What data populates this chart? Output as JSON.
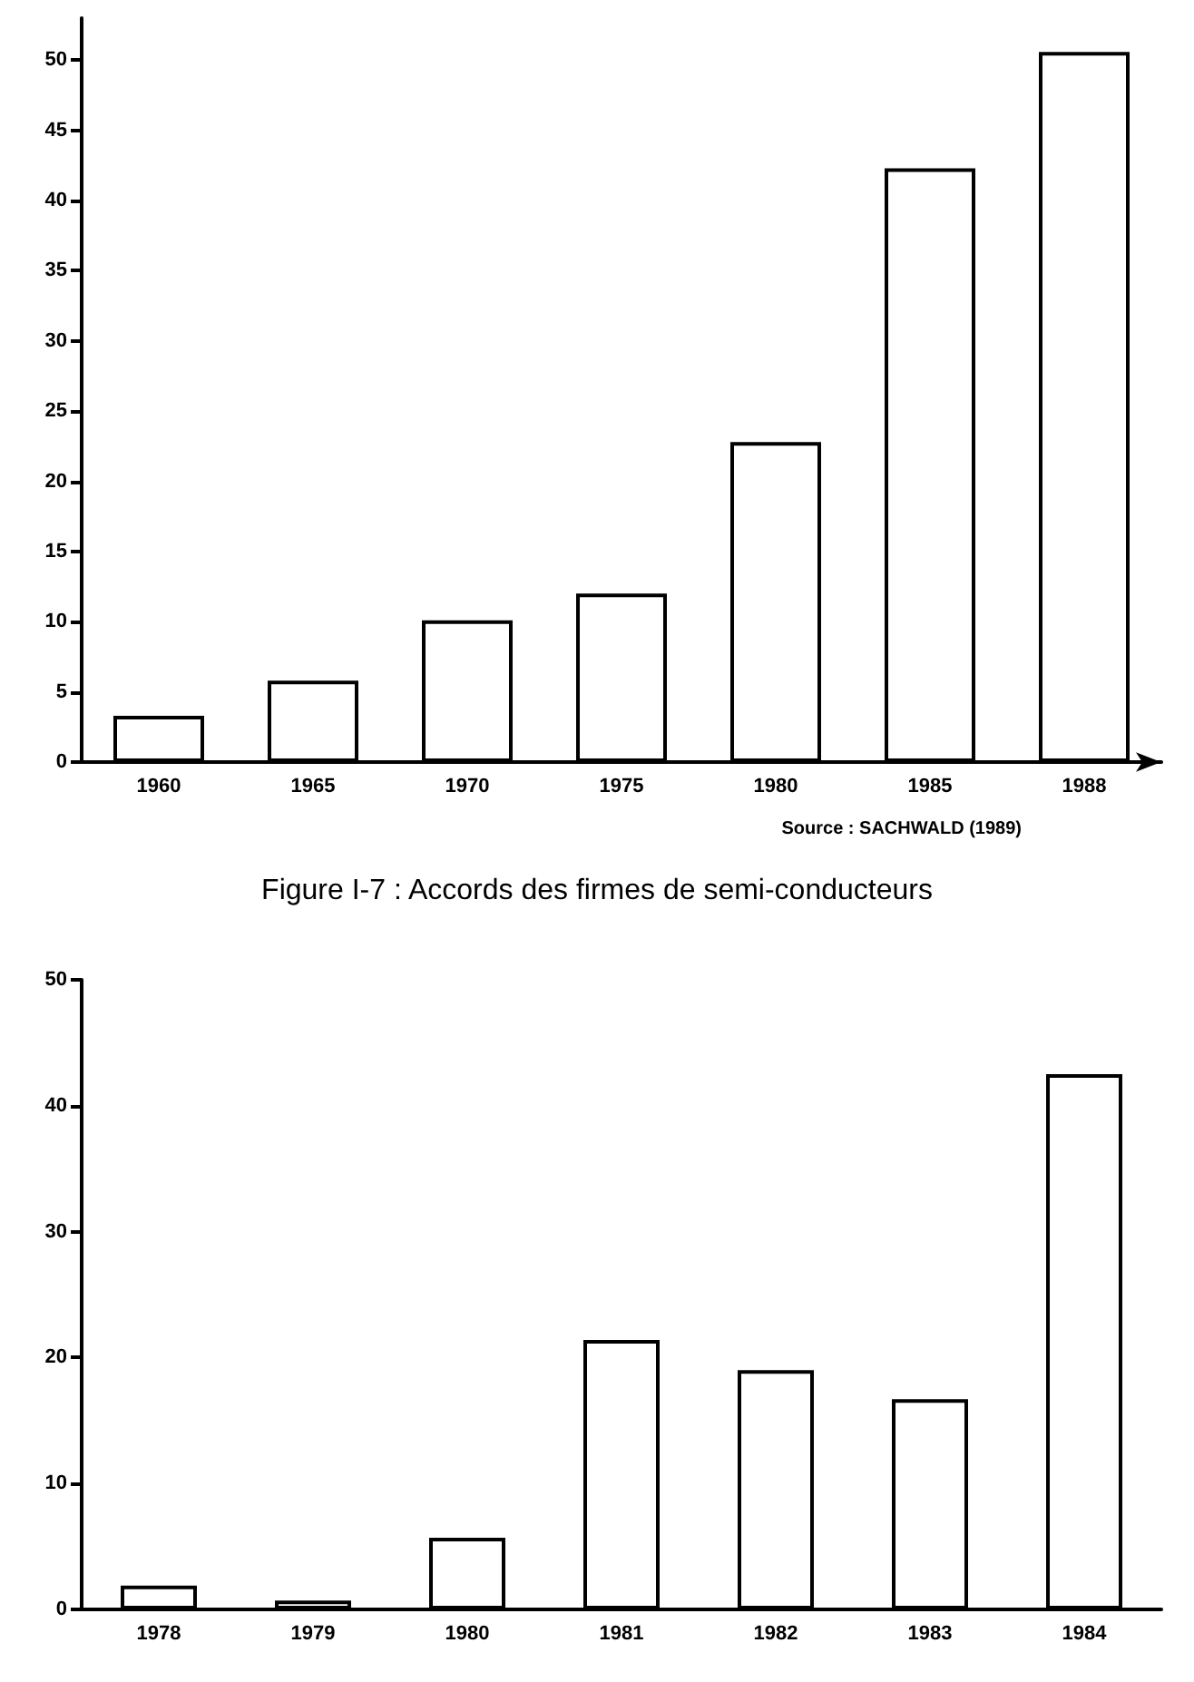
{
  "chart_data": [
    {
      "type": "bar",
      "categories": [
        "1960",
        "1965",
        "1970",
        "1975",
        "1980",
        "1985",
        "1988"
      ],
      "values": [
        3.3,
        5.8,
        10.1,
        12.0,
        22.8,
        42.3,
        50.6
      ],
      "color": "#ffffff",
      "ylim": [
        0,
        53
      ],
      "yticks": [
        0,
        5,
        10,
        15,
        20,
        25,
        30,
        35,
        40,
        45,
        50
      ],
      "annotations": [
        "Source : SACHWALD (1989)"
      ]
    },
    {
      "type": "bar",
      "title": "Figure I-7 : Accords des firmes de semi-conducteurs",
      "categories": [
        "1978",
        "1979",
        "1980",
        "1981",
        "1982",
        "1983",
        "1984"
      ],
      "values": [
        1.9,
        0.7,
        5.7,
        21.4,
        19.0,
        16.7,
        42.5
      ],
      "color": "#ffffff",
      "ylim": [
        0,
        50
      ],
      "yticks": [
        0,
        10,
        20,
        30,
        40,
        50
      ]
    }
  ]
}
